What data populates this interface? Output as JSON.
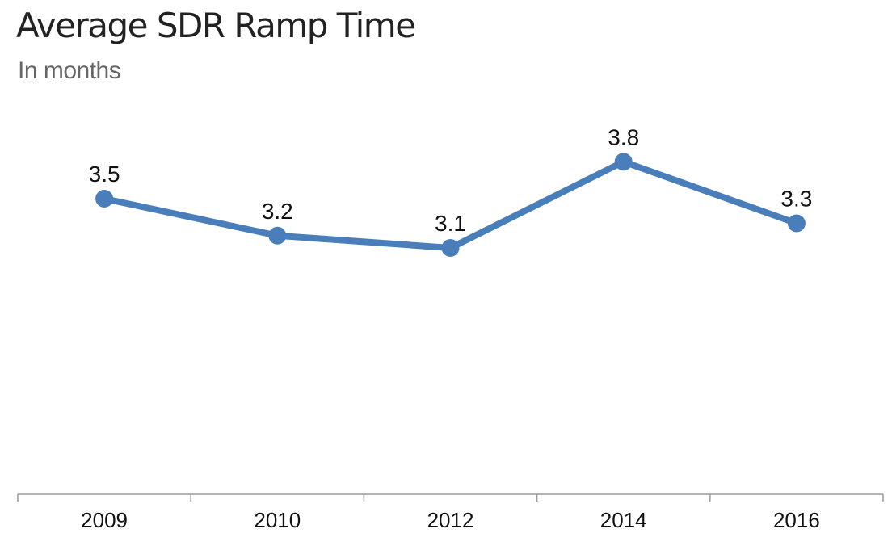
{
  "chart_data": {
    "type": "line",
    "title": "Average SDR Ramp Time",
    "subtitle": "In months",
    "xlabel": "",
    "ylabel": "",
    "categories": [
      "2009",
      "2010",
      "2012",
      "2014",
      "2016"
    ],
    "series": [
      {
        "values": [
          3.5,
          3.2,
          3.1,
          3.8,
          3.3
        ],
        "data_labels": [
          "3.5",
          "3.2",
          "3.1",
          "3.8",
          "3.3"
        ],
        "color": "#4a7ebb"
      }
    ],
    "ylim": [
      1.1,
      4.3
    ],
    "grid": false,
    "legend": "none",
    "axis_color": "#999999"
  }
}
